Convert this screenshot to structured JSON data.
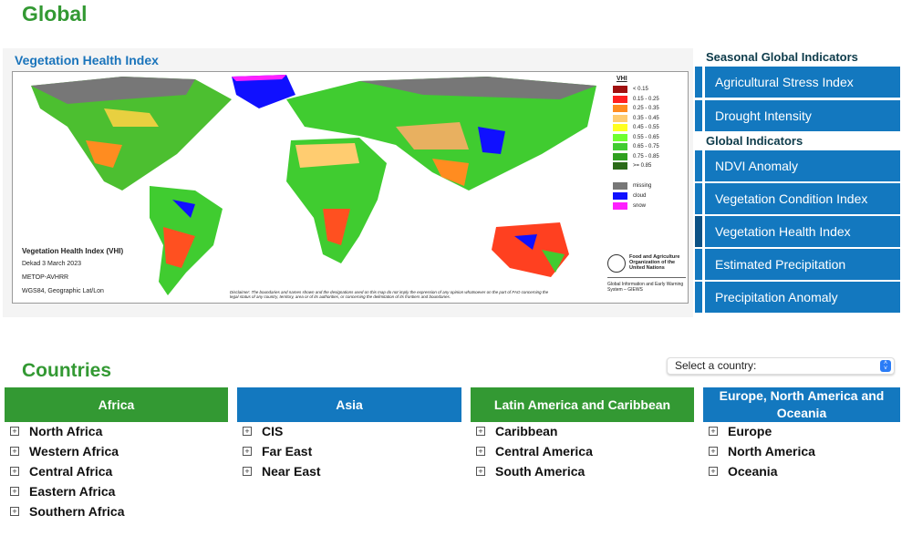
{
  "page_title": "Global",
  "map": {
    "title": "Vegetation Health Index",
    "legend_title": "VHI",
    "legend": [
      {
        "label": "< 0.15",
        "color": "#a01010"
      },
      {
        "label": "0.15 - 0.25",
        "color": "#ff2020"
      },
      {
        "label": "0.25 - 0.35",
        "color": "#ff8c20"
      },
      {
        "label": "0.35 - 0.45",
        "color": "#ffcc70"
      },
      {
        "label": "0.45 - 0.55",
        "color": "#ffff20"
      },
      {
        "label": "0.55 - 0.65",
        "color": "#70ff30"
      },
      {
        "label": "0.65 - 0.75",
        "color": "#40cc30"
      },
      {
        "label": "0.75 - 0.85",
        "color": "#30a020"
      },
      {
        "label": ">= 0.85",
        "color": "#2a6a18"
      }
    ],
    "legend_extra": [
      {
        "label": "missing",
        "color": "#777777"
      },
      {
        "label": "cloud",
        "color": "#1010ff"
      },
      {
        "label": "snow",
        "color": "#ff20ff"
      }
    ],
    "info": [
      "Vegetation Health Index (VHI)",
      "Dekad 3 March 2023",
      "METOP-AVHRR",
      "WGS84, Geographic Lat/Lon"
    ],
    "disclaimer": "Disclaimer: The boundaries and names shown and the designations used on this map do not imply the expression of any opinion whatsoever on the part of FAO concerning the legal status of any country, territory, area or of its authorities, or concerning the delimitation of its frontiers and boundaries.",
    "fao_logo_text": "Food and Agriculture Organization of the United Nations",
    "giews": "Global Information and Early Warning System – GIEWS"
  },
  "sidebar": {
    "seasonal_heading": "Seasonal Global Indicators",
    "seasonal": [
      "Agricultural Stress Index",
      "Drought Intensity"
    ],
    "global_heading": "Global Indicators",
    "global": [
      "NDVI Anomaly",
      "Vegetation Condition Index",
      "Vegetation Health Index",
      "Estimated Precipitation",
      "Precipitation Anomaly"
    ],
    "active": "Vegetation Health Index"
  },
  "countries": {
    "title": "Countries",
    "select_placeholder": "Select a country:",
    "regions": [
      {
        "name": "Africa",
        "color": "#339933",
        "items": [
          "North Africa",
          "Western Africa",
          "Central Africa",
          "Eastern Africa",
          "Southern Africa"
        ]
      },
      {
        "name": "Asia",
        "color": "#1378bf",
        "items": [
          "CIS",
          "Far East",
          "Near East"
        ]
      },
      {
        "name": "Latin America and Caribbean",
        "color": "#339933",
        "items": [
          "Caribbean",
          "Central America",
          "South America"
        ]
      },
      {
        "name": "Europe, North America and Oceania",
        "color": "#1378bf",
        "items": [
          "Europe",
          "North America",
          "Oceania"
        ]
      }
    ]
  }
}
